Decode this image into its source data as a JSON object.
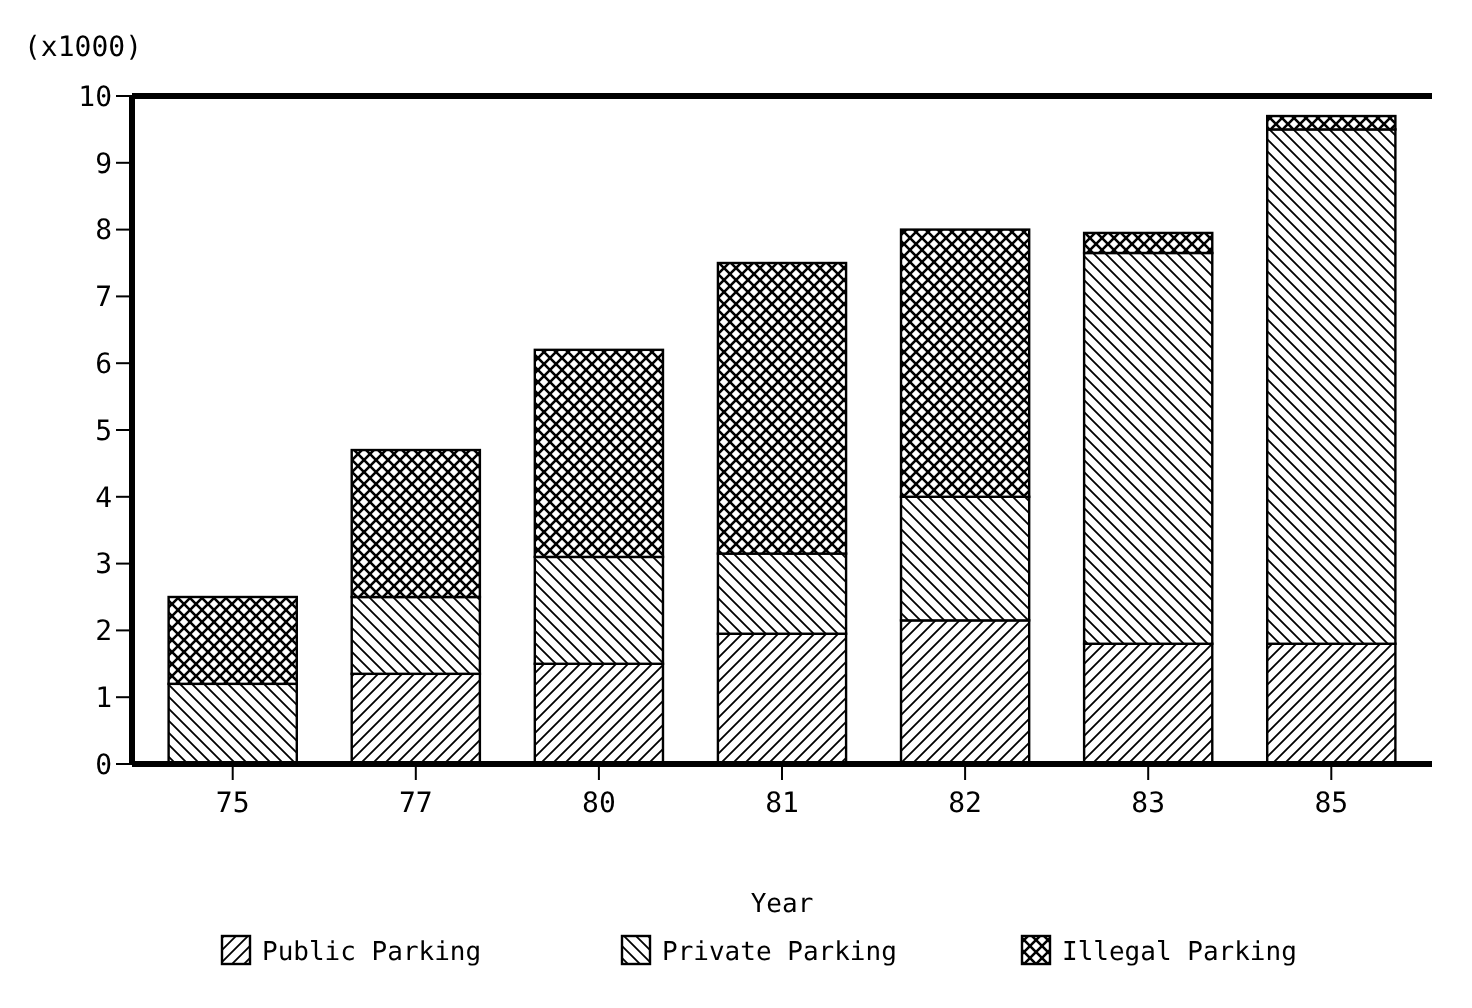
{
  "chart_data": {
    "type": "bar",
    "stacked": true,
    "xlabel": "Year",
    "ylabel": "(x1000)",
    "categories": [
      "75",
      "77",
      "80",
      "81",
      "82",
      "83",
      "85"
    ],
    "series": [
      {
        "name": "Public Parking",
        "color": "#000000",
        "values": [
          0,
          1.35,
          1.5,
          1.95,
          2.15,
          1.8,
          1.8
        ]
      },
      {
        "name": "Private Parking",
        "color": "#000000",
        "values": [
          1.2,
          1.15,
          1.6,
          1.2,
          1.85,
          5.85,
          7.7
        ]
      },
      {
        "name": "Illegal Parking",
        "color": "#000000",
        "values": [
          1.3,
          2.2,
          3.1,
          4.35,
          4.0,
          0.3,
          0.2
        ]
      }
    ],
    "ylim": [
      0,
      10
    ],
    "yticks": [
      0,
      1,
      2,
      3,
      4,
      5,
      6,
      7,
      8,
      9,
      10
    ],
    "grid": false,
    "legend": "bottom"
  }
}
